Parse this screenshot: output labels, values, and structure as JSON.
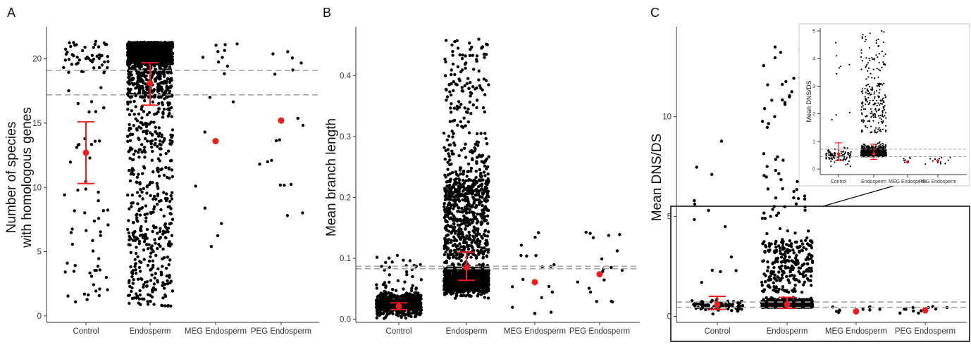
{
  "figure": {
    "panel_letters": [
      "A",
      "B",
      "C"
    ]
  },
  "colors": {
    "points": "#000000",
    "mean_marker": "#ee1c1c",
    "reference_lines": "#a6a6a6",
    "axis": "#333333"
  },
  "chart_data": [
    {
      "panel": "A",
      "type": "scatter",
      "subtype": "jitter strip plot with mean and error bars",
      "ylabel_lines": [
        "Number of species",
        "with homologous genes"
      ],
      "categories": [
        "Control",
        "Endosperm",
        "MEG Endosperm",
        "PEG Endosperm"
      ],
      "yticks": [
        0,
        5,
        10,
        15,
        20
      ],
      "ylim": [
        -0.5,
        22.5
      ],
      "reference_lines": [
        19.1,
        17.2
      ],
      "approx_point_counts": [
        110,
        1800,
        18,
        18
      ],
      "means": [
        12.7,
        18.1,
        13.6,
        15.2
      ],
      "error_bars": [
        [
          10.3,
          15.1
        ],
        [
          16.4,
          19.7
        ],
        null,
        null
      ],
      "grid": false,
      "legend": "none"
    },
    {
      "panel": "B",
      "type": "scatter",
      "subtype": "jitter strip plot with mean and error bars",
      "ylabel": "Mean branch length",
      "categories": [
        "Control",
        "Endosperm",
        "MEG Endosperm",
        "PEG Endosperm"
      ],
      "yticks": [
        "0.0",
        "0.1",
        "0.2",
        "0.3",
        "0.4"
      ],
      "ylim": [
        -0.005,
        0.48
      ],
      "reference_lines": [
        0.087,
        0.083
      ],
      "approx_point_counts": [
        600,
        1800,
        18,
        18
      ],
      "means": [
        0.021,
        0.085,
        0.061,
        0.074
      ],
      "error_bars": [
        [
          0.016,
          0.027
        ],
        [
          0.064,
          0.11
        ],
        null,
        null
      ],
      "grid": false,
      "legend": "none"
    },
    {
      "panel": "C",
      "type": "scatter",
      "subtype": "jitter strip plot with mean and error bars",
      "ylabel": "Mean DNS/DS",
      "categories": [
        "Control",
        "Endosperm",
        "MEG Endosperm",
        "PEG Endosperm"
      ],
      "yticks": [
        0,
        5,
        10
      ],
      "ylim": [
        -0.3,
        14.5
      ],
      "reference_lines": [
        0.72,
        0.45
      ],
      "approx_point_counts": [
        100,
        1500,
        10,
        12
      ],
      "means": [
        0.6,
        0.6,
        0.25,
        0.3
      ],
      "error_bars": [
        [
          0.35,
          1.0
        ],
        [
          0.4,
          0.95
        ],
        null,
        null
      ],
      "zoom_box_range": [
        0,
        5
      ],
      "grid": false,
      "legend": "none"
    },
    {
      "panel": "C-inset",
      "type": "scatter",
      "subtype": "zoomed jitter strip plot (y from 0 to 5)",
      "ylabel": "Mean DNS/DS",
      "categories": [
        "Control",
        "Endosperm",
        "MEG Endosperm",
        "PEG Endosperm"
      ],
      "yticks": [
        0,
        1,
        2,
        3,
        4,
        5
      ],
      "ylim": [
        -0.2,
        5.1
      ],
      "reference_lines": [
        0.72,
        0.45
      ],
      "means": [
        0.55,
        0.55,
        0.25,
        0.3
      ],
      "error_bars": [
        [
          0.3,
          0.95
        ],
        [
          0.35,
          0.9
        ],
        null,
        null
      ],
      "grid": false,
      "legend": "none"
    }
  ]
}
